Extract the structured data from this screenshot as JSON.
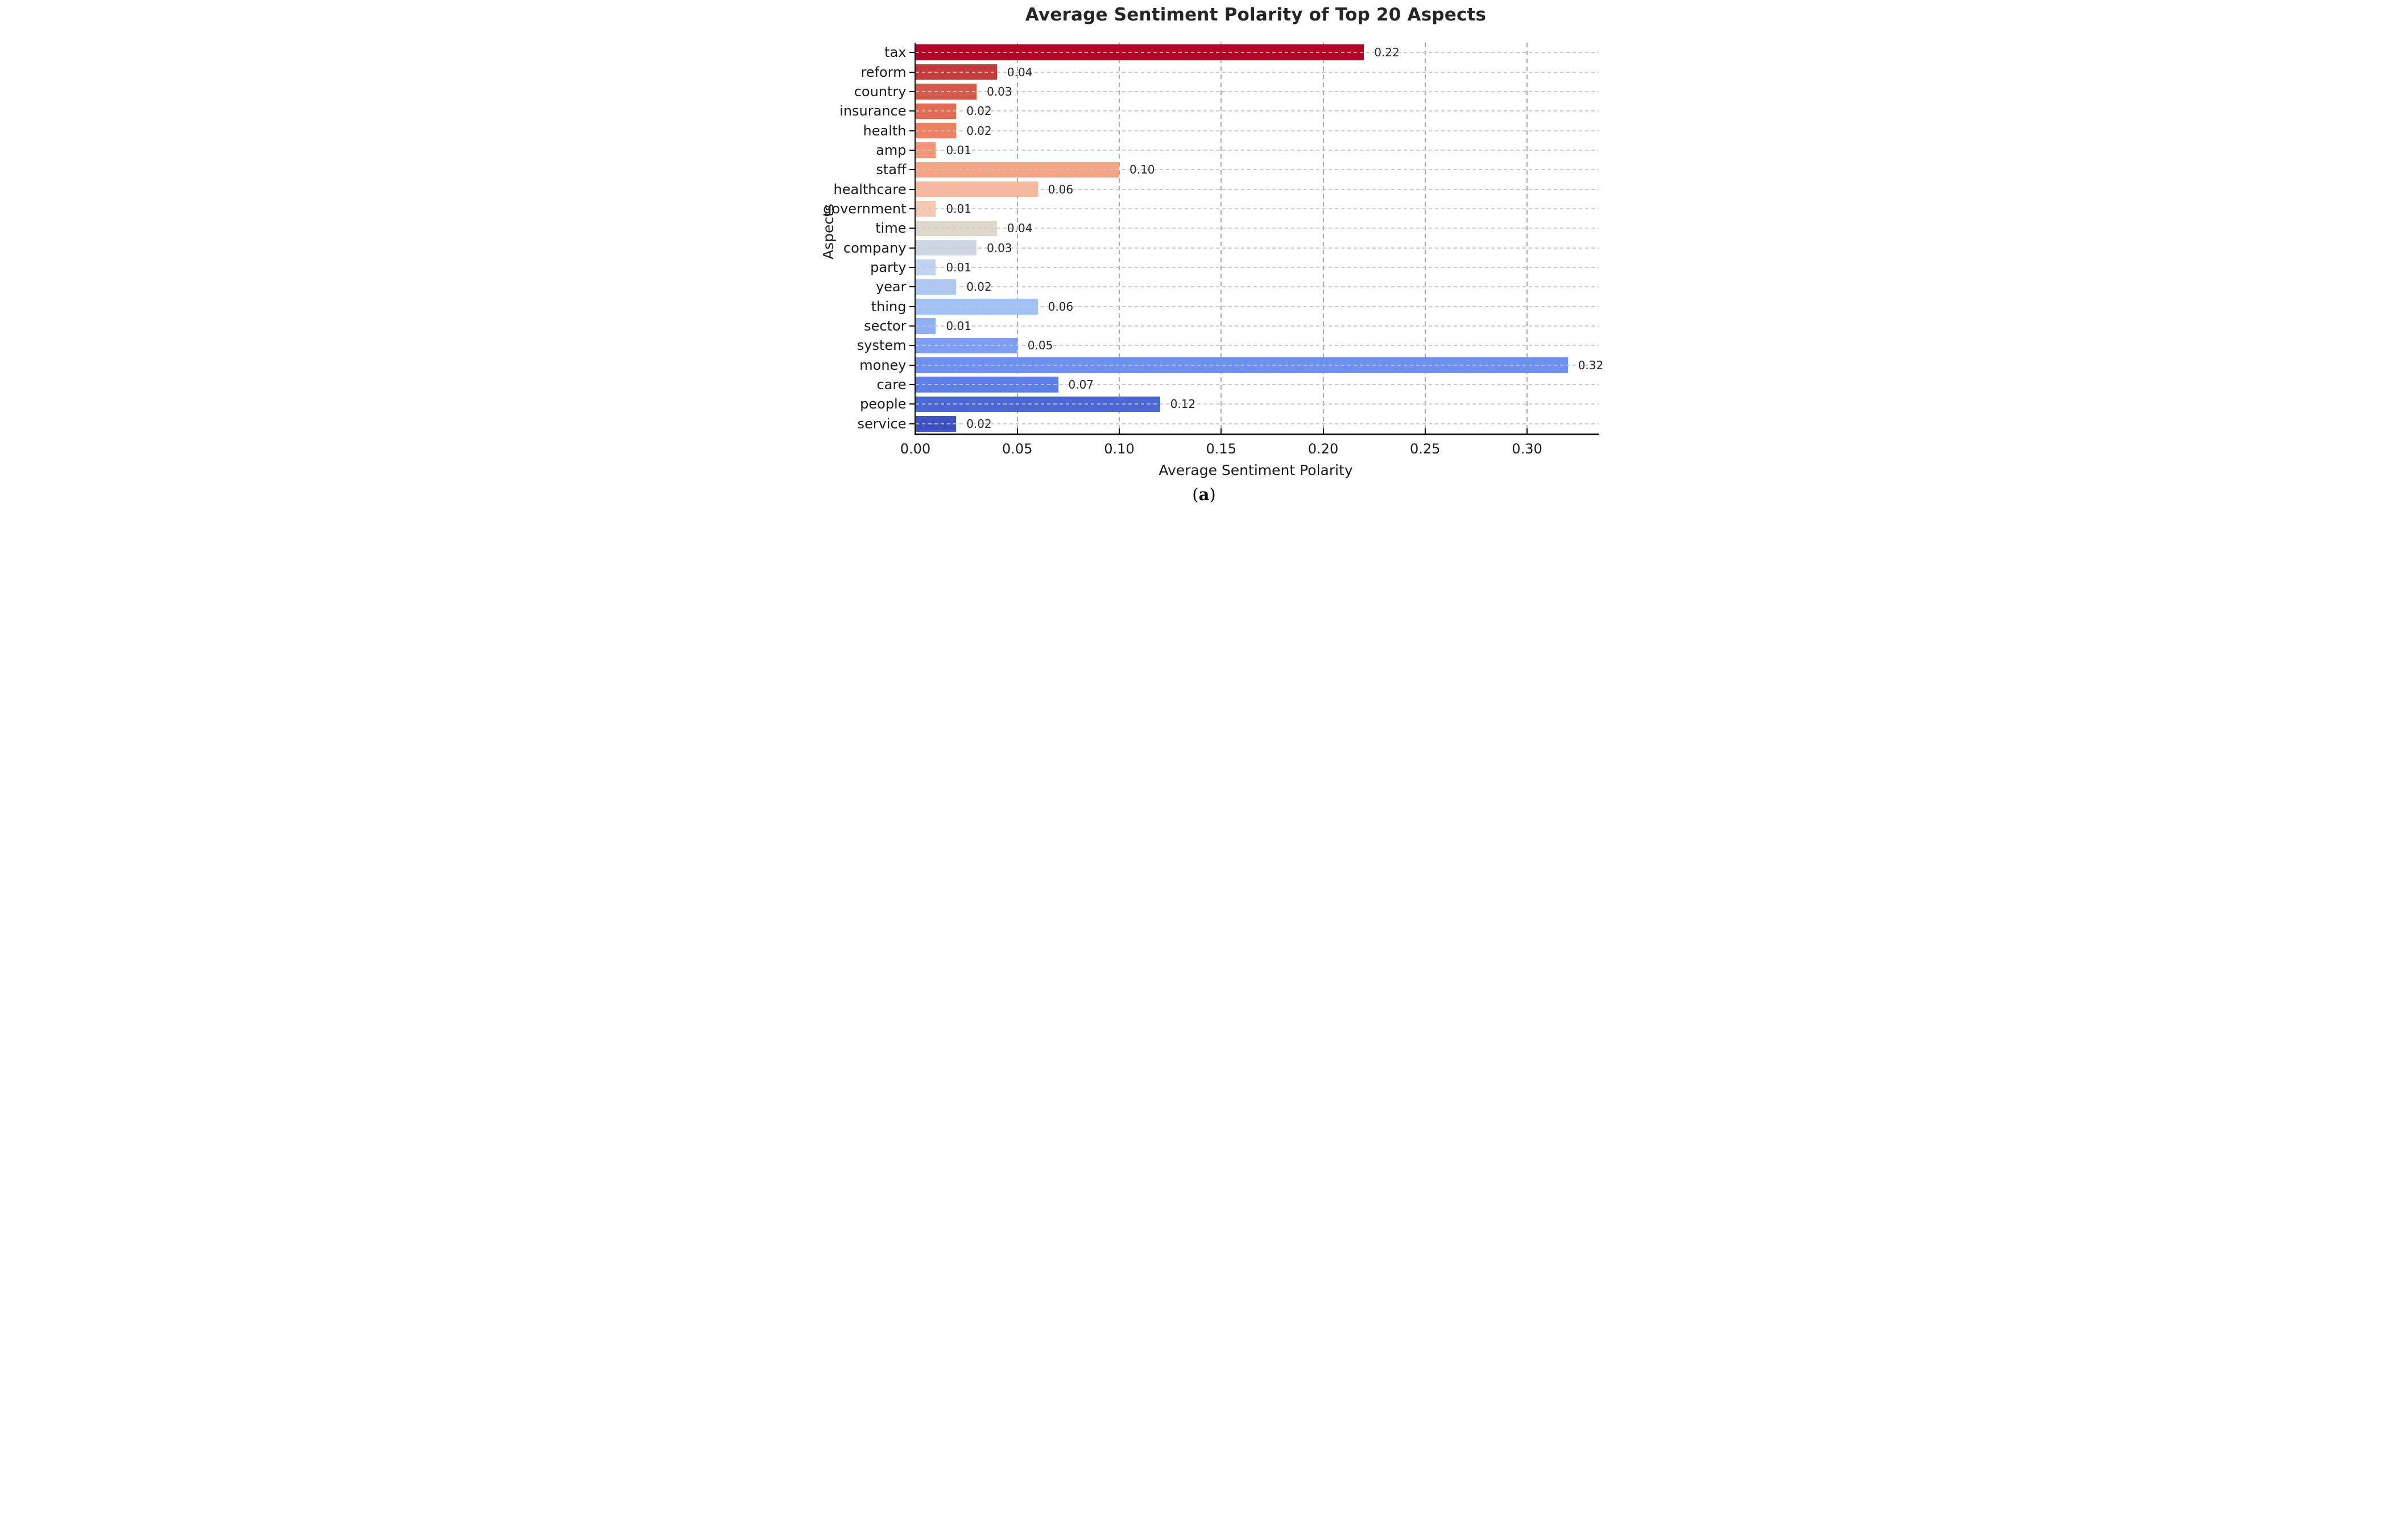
{
  "figure": {
    "title": "Average Sentiment Polarity of Top 20 Aspects",
    "xlabel": "Average Sentiment Polarity",
    "ylabel": "Aspects",
    "caption_open": "(",
    "caption_letter": "a",
    "caption_close": ")"
  },
  "chart_data": {
    "type": "bar",
    "orientation": "horizontal",
    "title": "Average Sentiment Polarity of Top 20 Aspects",
    "xlabel": "Average Sentiment Polarity",
    "ylabel": "Aspects",
    "categories": [
      "tax",
      "reform",
      "country",
      "insurance",
      "health",
      "amp",
      "staff",
      "healthcare",
      "government",
      "time",
      "company",
      "party",
      "year",
      "thing",
      "sector",
      "system",
      "money",
      "care",
      "people",
      "service"
    ],
    "values": [
      0.22,
      0.04,
      0.03,
      0.02,
      0.02,
      0.01,
      0.1,
      0.06,
      0.01,
      0.04,
      0.03,
      0.01,
      0.02,
      0.06,
      0.01,
      0.05,
      0.32,
      0.07,
      0.12,
      0.02
    ],
    "value_labels": [
      "0.22",
      "0.04",
      "0.03",
      "0.02",
      "0.02",
      "0.01",
      "0.10",
      "0.06",
      "0.01",
      "0.04",
      "0.03",
      "0.01",
      "0.02",
      "0.06",
      "0.01",
      "0.05",
      "0.32",
      "0.07",
      "0.12",
      "0.02"
    ],
    "bar_colors": [
      "#b40426",
      "#c43c3b",
      "#d65949",
      "#e16b54",
      "#ec8163",
      "#f29679",
      "#f4a586",
      "#f6b79c",
      "#f4c9b2",
      "#ded8cb",
      "#cdd7e4",
      "#c0d4f1",
      "#adc9f3",
      "#a1c2f7",
      "#8db0f2",
      "#7e9ff1",
      "#6e90f1",
      "#5d7fe7",
      "#4b68d7",
      "#3c51c3"
    ],
    "x_ticks": [
      "0.00",
      "0.05",
      "0.10",
      "0.15",
      "0.20",
      "0.25",
      "0.30"
    ],
    "x_tick_values": [
      0,
      0.05,
      0.1,
      0.15,
      0.2,
      0.25,
      0.3
    ],
    "xlim": [
      0,
      0.335
    ],
    "grid": true,
    "legend_position": "none",
    "colors": {
      "title_text": "#262626",
      "axis_text": "#1a1a1a",
      "grid_horizontal": "#c6c6c6",
      "grid_vertical": "#ababab",
      "spine": "#111111",
      "background": "#ffffff"
    }
  }
}
